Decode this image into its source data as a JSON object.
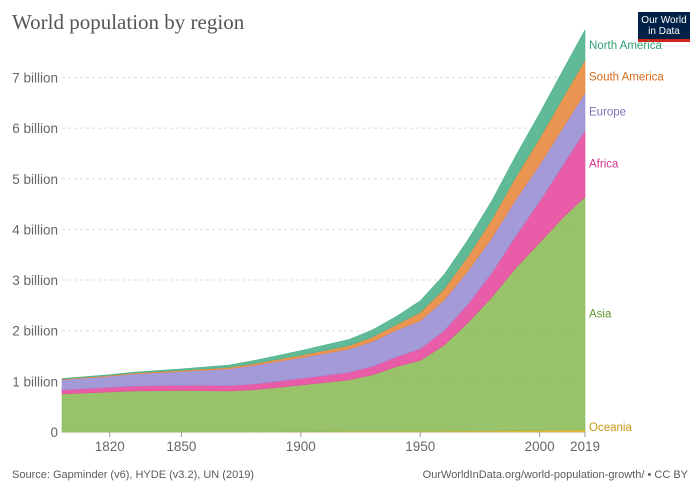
{
  "header": {
    "title": "World population by region",
    "logo_line1": "Our World",
    "logo_line2": "in Data"
  },
  "footer": {
    "source": "Source: Gapminder (v6), HYDE (v3.2), UN (2019)",
    "url": "OurWorldInData.org/world-population-growth/ • CC BY"
  },
  "chart_data": {
    "type": "area",
    "stacked": true,
    "title": "World population by region",
    "xlim": [
      1800,
      2019
    ],
    "ylim": [
      0,
      7700000000
    ],
    "x_tick_labels": [
      "1820",
      "1850",
      "1900",
      "1950",
      "2000",
      "2019"
    ],
    "y_tick_labels": [
      "0",
      "1 billion",
      "2 billion",
      "3 billion",
      "4 billion",
      "5 billion",
      "6 billion",
      "7 billion"
    ],
    "x": [
      1800,
      1820,
      1830,
      1850,
      1870,
      1880,
      1900,
      1920,
      1930,
      1940,
      1950,
      1960,
      1970,
      1980,
      1990,
      2000,
      2010,
      2019
    ],
    "series": [
      {
        "name": "Oceania",
        "color": "#e1b12c",
        "values": [
          2000000,
          2000000,
          2000000,
          2000000,
          2000000,
          3000000,
          6000000,
          9000000,
          10000000,
          11000000,
          13000000,
          16000000,
          20000000,
          23000000,
          27000000,
          31000000,
          37000000,
          42000000
        ]
      },
      {
        "name": "Asia",
        "color": "#8dbd5a",
        "values": [
          750000000,
          790000000,
          810000000,
          820000000,
          810000000,
          830000000,
          920000000,
          1020000000,
          1120000000,
          1280000000,
          1400000000,
          1700000000,
          2140000000,
          2640000000,
          3210000000,
          3710000000,
          4210000000,
          4600000000
        ]
      },
      {
        "name": "Africa",
        "color": "#e74b9e",
        "values": [
          80000000,
          90000000,
          95000000,
          100000000,
          105000000,
          110000000,
          130000000,
          145000000,
          165000000,
          190000000,
          230000000,
          285000000,
          366000000,
          480000000,
          630000000,
          811000000,
          1040000000,
          1310000000
        ]
      },
      {
        "name": "Europe",
        "color": "#9b8fd4",
        "values": [
          200000000,
          220000000,
          240000000,
          275000000,
          330000000,
          370000000,
          410000000,
          460000000,
          490000000,
          530000000,
          550000000,
          605000000,
          657000000,
          694000000,
          721000000,
          726000000,
          736000000,
          747000000
        ]
      },
      {
        "name": "South America",
        "color": "#e8893e",
        "values": [
          15000000,
          17000000,
          18000000,
          22000000,
          30000000,
          35000000,
          50000000,
          70000000,
          90000000,
          110000000,
          168000000,
          220000000,
          286000000,
          362000000,
          443000000,
          522000000,
          593000000,
          648000000
        ]
      },
      {
        "name": "North America",
        "color": "#4fb38c",
        "values": [
          7000000,
          12000000,
          15000000,
          26000000,
          45000000,
          60000000,
          90000000,
          120000000,
          140000000,
          160000000,
          228000000,
          280000000,
          325000000,
          370000000,
          420000000,
          490000000,
          545000000,
          592000000
        ]
      }
    ],
    "label_colors": {
      "North America": "#2f9e70",
      "South America": "#d86a1d",
      "Europe": "#7d70c0",
      "Africa": "#d6318a",
      "Asia": "#5e9a2f",
      "Oceania": "#c79a12"
    },
    "legend_placement": "right (inline labels)",
    "grid": "horizontal dashed"
  }
}
